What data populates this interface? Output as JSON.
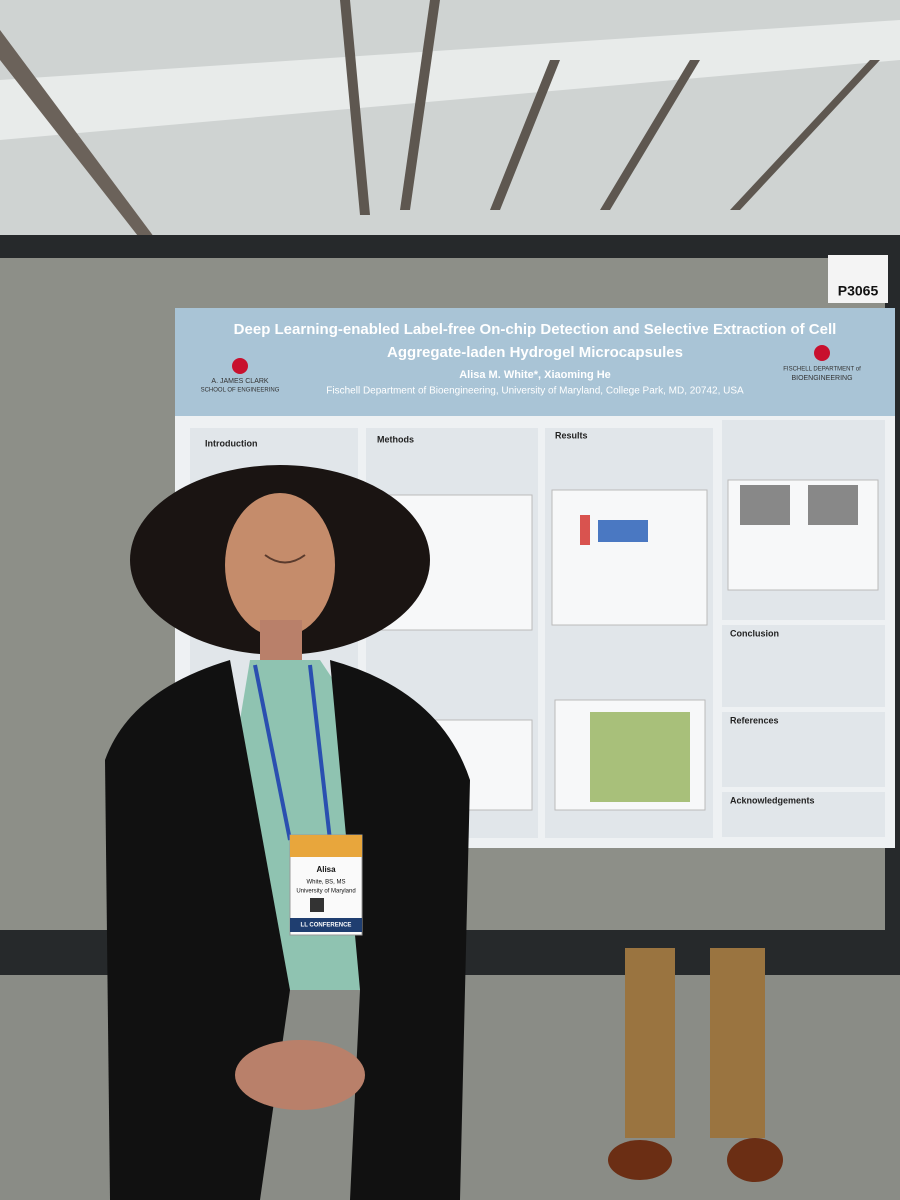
{
  "board_number": "P3065",
  "poster": {
    "title_lines": [
      "Deep Learning-enabled Label-free On-chip Detection and Selective Extraction of Cell",
      "Aggregate-laden Hydrogel Microcapsules"
    ],
    "authors": "Alisa M. White*, Xiaoming He",
    "affiliation": "Fischell Department of Bioengineering, University of Maryland, College Park, MD, 20742, USA",
    "left_logo": [
      "A. JAMES CLARK",
      "SCHOOL OF ENGINEERING"
    ],
    "right_logo": [
      "FISCHELL DEPARTMENT of",
      "BIOENGINEERING"
    ],
    "sections": {
      "introduction": "Introduction",
      "methods": "Methods",
      "results": "Results",
      "conclusion": "Conclusion",
      "references": "References",
      "acknowledgements": "Acknowledgements"
    }
  },
  "badge": {
    "name": "Alisa",
    "credentials": "White, BS, MS",
    "institution": "University of Maryland",
    "event": "LL CONFERENCE"
  }
}
